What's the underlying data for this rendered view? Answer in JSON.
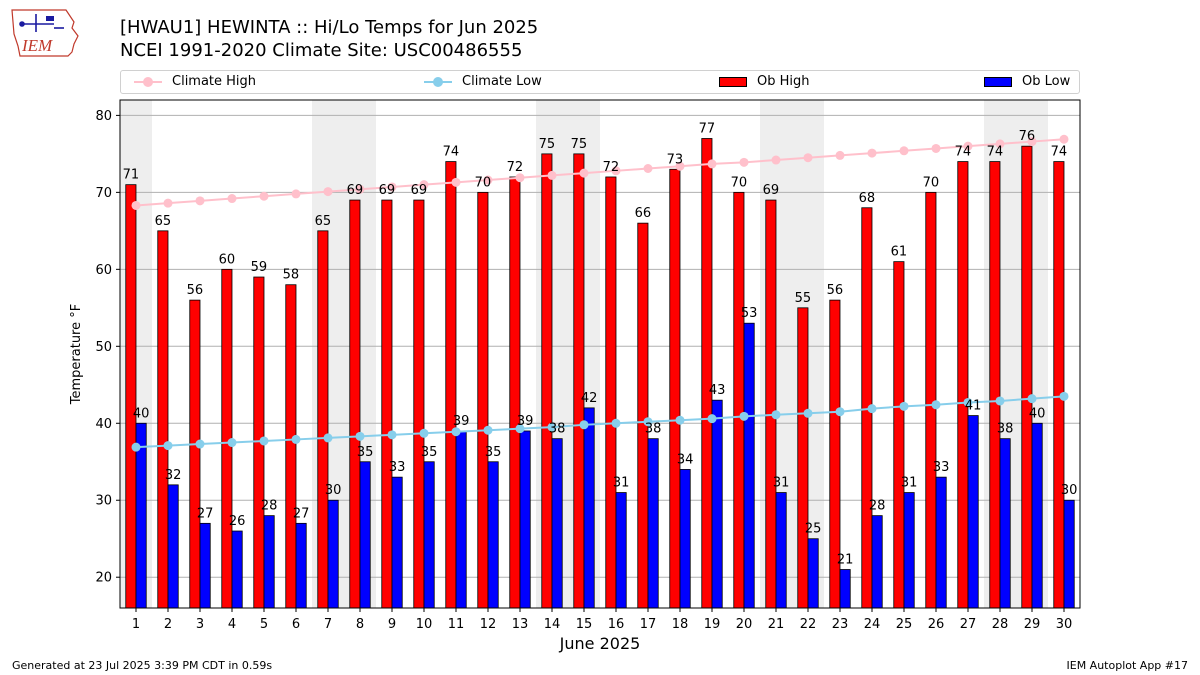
{
  "logo": {
    "text": "IEM"
  },
  "header": {
    "title_line1": "[HWAU1] HEWINTA :: Hi/Lo Temps for Jun 2025",
    "title_line2": "NCEI 1991-2020 Climate Site: USC00486555"
  },
  "legend": {
    "climate_high": "Climate High",
    "climate_low": "Climate Low",
    "ob_high": "Ob High",
    "ob_low": "Ob Low"
  },
  "colors": {
    "ob_high": "#ff0000",
    "ob_low": "#0000ff",
    "climate_high": "#ffc0cb",
    "climate_low": "#87ceeb",
    "weekend_band": "#eeeeee",
    "grid": "#b0b0b0"
  },
  "chart_data": {
    "type": "bar",
    "xlabel": "June 2025",
    "ylabel": "Temperature °F",
    "ylim": [
      16,
      82
    ],
    "yticks": [
      20,
      30,
      40,
      50,
      60,
      70,
      80
    ],
    "grid": "horizontal",
    "legend_position": "top",
    "categories": [
      "1",
      "2",
      "3",
      "4",
      "5",
      "6",
      "7",
      "8",
      "9",
      "10",
      "11",
      "12",
      "13",
      "14",
      "15",
      "16",
      "17",
      "18",
      "19",
      "20",
      "21",
      "22",
      "23",
      "24",
      "25",
      "26",
      "27",
      "28",
      "29",
      "30"
    ],
    "shaded_days": [
      "1",
      "7",
      "8",
      "14",
      "15",
      "21",
      "22",
      "28",
      "29"
    ],
    "series": [
      {
        "name": "Ob High",
        "kind": "bar",
        "values": [
          71,
          65,
          56,
          60,
          59,
          58,
          65,
          69,
          69,
          69,
          74,
          70,
          72,
          75,
          75,
          72,
          66,
          73,
          77,
          70,
          69,
          55,
          56,
          68,
          61,
          70,
          74,
          74,
          76,
          74
        ]
      },
      {
        "name": "Ob Low",
        "kind": "bar",
        "values": [
          40,
          32,
          27,
          26,
          28,
          27,
          30,
          35,
          33,
          35,
          39,
          35,
          39,
          38,
          42,
          31,
          38,
          34,
          43,
          53,
          31,
          25,
          21,
          28,
          31,
          33,
          41,
          38,
          40,
          30
        ]
      },
      {
        "name": "Climate High",
        "kind": "line",
        "values": [
          68.3,
          68.6,
          68.9,
          69.2,
          69.5,
          69.8,
          70.1,
          70.4,
          70.7,
          71.0,
          71.3,
          71.6,
          71.9,
          72.2,
          72.5,
          72.8,
          73.1,
          73.4,
          73.7,
          73.9,
          74.2,
          74.5,
          74.8,
          75.1,
          75.4,
          75.7,
          76.0,
          76.3,
          76.6,
          76.9
        ]
      },
      {
        "name": "Climate Low",
        "kind": "line",
        "values": [
          36.9,
          37.1,
          37.3,
          37.5,
          37.7,
          37.9,
          38.1,
          38.3,
          38.5,
          38.7,
          38.9,
          39.1,
          39.3,
          39.5,
          39.8,
          40.0,
          40.2,
          40.4,
          40.6,
          40.9,
          41.1,
          41.3,
          41.5,
          41.9,
          42.2,
          42.4,
          42.7,
          42.9,
          43.2,
          43.5
        ]
      }
    ]
  },
  "footer": {
    "left": "Generated at 23 Jul 2025 3:39 PM CDT in 0.59s",
    "right": "IEM Autoplot App #17"
  }
}
